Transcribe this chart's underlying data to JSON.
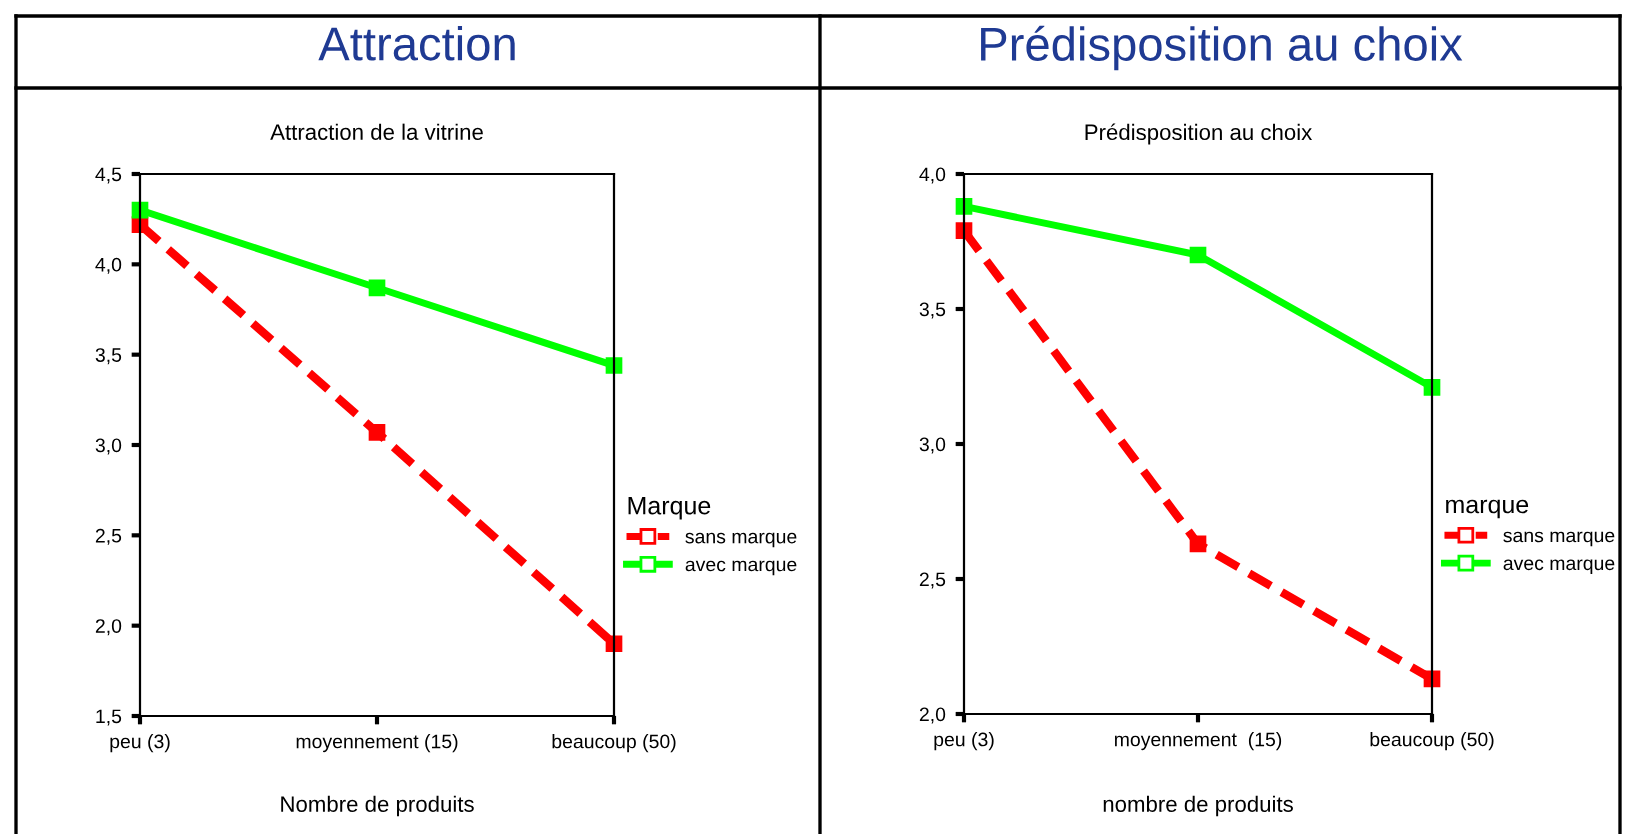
{
  "chart_data": [
    {
      "type": "line",
      "title": "Attraction",
      "subtitle": "Attraction de la vitrine",
      "xlabel": "Nombre de produits",
      "legend_title": "Marque",
      "legend": "right",
      "grid": false,
      "marker": "square",
      "categories": [
        "peu (3)",
        "moyennement (15)",
        "beaucoup (50)"
      ],
      "series": [
        {
          "name": "sans marque",
          "color": "#ff0000",
          "line_style": "dashed",
          "values": [
            4.22,
            3.07,
            1.9
          ]
        },
        {
          "name": "avec marque",
          "color": "#00ff00",
          "line_style": "solid",
          "values": [
            4.3,
            3.87,
            3.44
          ]
        }
      ],
      "ylim": [
        1.5,
        4.5
      ],
      "yticks": [
        {
          "value": 1.5,
          "label": "1,5"
        },
        {
          "value": 2.0,
          "label": "2,0"
        },
        {
          "value": 2.5,
          "label": "2,5"
        },
        {
          "value": 3.0,
          "label": "3,0"
        },
        {
          "value": 3.5,
          "label": "3,5"
        },
        {
          "value": 4.0,
          "label": "4,0"
        },
        {
          "value": 4.5,
          "label": "4,5"
        }
      ]
    },
    {
      "type": "line",
      "title": "Prédisposition au choix",
      "subtitle": "Prédisposition au choix",
      "xlabel": "nombre de produits",
      "legend_title": "marque",
      "legend": "right",
      "grid": false,
      "marker": "square",
      "categories": [
        "peu (3)",
        "moyennement  (15)",
        "beaucoup (50)"
      ],
      "series": [
        {
          "name": "sans marque",
          "color": "#ff0000",
          "line_style": "dashed",
          "values": [
            3.79,
            2.63,
            2.13
          ]
        },
        {
          "name": "avec marque",
          "color": "#00ff00",
          "line_style": "solid",
          "values": [
            3.88,
            3.7,
            3.21
          ]
        }
      ],
      "ylim": [
        2.0,
        4.0
      ],
      "yticks": [
        {
          "value": 2.0,
          "label": "2,0"
        },
        {
          "value": 2.5,
          "label": "2,5"
        },
        {
          "value": 3.0,
          "label": "3,0"
        },
        {
          "value": 3.5,
          "label": "3,5"
        },
        {
          "value": 4.0,
          "label": "4,0"
        }
      ]
    }
  ]
}
